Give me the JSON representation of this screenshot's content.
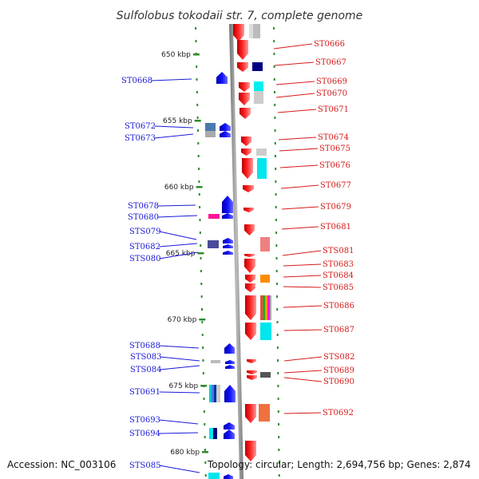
{
  "title": "Sulfolobus tokodaii str. 7, complete genome",
  "footer": {
    "accession": "Accession: NC_003106",
    "topology": "Topology: circular; Length: 2,694,756 bp; Genes: 2,874"
  },
  "scale": [
    {
      "label": "650 kbp",
      "value": 650
    },
    {
      "label": "655 kbp",
      "value": 655
    },
    {
      "label": "660 kbp",
      "value": 660
    },
    {
      "label": "665 kbp",
      "value": 665
    },
    {
      "label": "670 kbp",
      "value": 670
    },
    {
      "label": "675 kbp",
      "value": 675
    },
    {
      "label": "680 kbp",
      "value": 680
    }
  ],
  "genes_left": [
    "ST0668",
    "ST0672",
    "ST0673",
    "ST0678",
    "ST0680",
    "STS079",
    "ST0682",
    "STS080",
    "ST0688",
    "STS083",
    "STS084",
    "ST0691",
    "ST0693",
    "ST0694",
    "STS085"
  ],
  "genes_right": [
    "ST0666",
    "ST0667",
    "ST0669",
    "ST0670",
    "ST0671",
    "ST0674",
    "ST0675",
    "ST0676",
    "ST0677",
    "ST0679",
    "ST0681",
    "STS081",
    "ST0683",
    "ST0684",
    "ST0685",
    "ST0686",
    "ST0687",
    "STS082",
    "ST0689",
    "ST0690",
    "ST0692"
  ],
  "colors": {
    "forward_strand": "#ff0000",
    "reverse_strand": "#0000ff",
    "left_label": "#1a1ad6",
    "right_label": "#d61a1a",
    "axis": "#9a9a9a",
    "tick": "#2e8b2e"
  }
}
